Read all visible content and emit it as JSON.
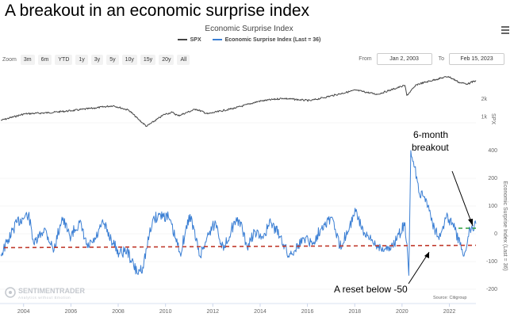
{
  "headline": "A breakout in an economic surprise index",
  "toolbar": {
    "zoom_label": "Zoom",
    "zoom_buttons": [
      "3m",
      "6m",
      "YTD",
      "1y",
      "3y",
      "5y",
      "10y",
      "15y",
      "20y",
      "All"
    ],
    "from_label": "From",
    "from_value": "Jan 2, 2003",
    "to_label": "To",
    "to_value": "Feb 15, 2023"
  },
  "watermark": {
    "name": "SENTIMENTRADER",
    "tagline": "Analytics without Emotion"
  },
  "chart_data": {
    "type": "line",
    "title": "Economic Surprise Index",
    "source": "Source: Citigroup",
    "colors": {
      "spx": "#444444",
      "esi": "#3b7fd4",
      "threshold": "#c0392b",
      "breakout": "#2e9e3e",
      "background": "#ffffff"
    },
    "x_ticks": [
      "2004",
      "2006",
      "2008",
      "2010",
      "2012",
      "2014",
      "2016",
      "2018",
      "2020",
      "2022"
    ],
    "xlim": [
      "2003-01-02",
      "2023-02-15"
    ],
    "spx_axis": {
      "label": "SPX",
      "scale": "log",
      "ticks": [
        "1k",
        "2k"
      ],
      "tick_values": [
        1000,
        2000
      ]
    },
    "esi_axis": {
      "label": "Economic Surprise Index (Last = 36)",
      "ticks": [
        "-200",
        "-100",
        "0",
        "100",
        "200",
        "400"
      ],
      "tick_values": [
        -200,
        -100,
        0,
        100,
        200,
        400
      ]
    },
    "series": [
      {
        "name": "SPX",
        "x": [
          "2003-01",
          "2004-01",
          "2005-01",
          "2006-01",
          "2007-01",
          "2007-10",
          "2008-06",
          "2008-11",
          "2009-03",
          "2009-12",
          "2010-04",
          "2010-07",
          "2011-04",
          "2011-10",
          "2012-12",
          "2013-12",
          "2014-12",
          "2015-08",
          "2016-02",
          "2016-12",
          "2018-01",
          "2018-12",
          "2019-12",
          "2020-02",
          "2020-03",
          "2020-08",
          "2021-06",
          "2021-12",
          "2022-06",
          "2022-10",
          "2023-02"
        ],
        "values": [
          880,
          1130,
          1180,
          1280,
          1420,
          1550,
          1300,
          900,
          700,
          1110,
          1200,
          1050,
          1360,
          1130,
          1420,
          1840,
          2060,
          1950,
          1880,
          2240,
          2820,
          2400,
          3230,
          3380,
          2300,
          3500,
          4290,
          4790,
          3750,
          3600,
          4090
        ]
      },
      {
        "name": "Economic Surprise Index (Last = 36)",
        "x": [
          "2003-01",
          "2003-05",
          "2003-09",
          "2004-03",
          "2004-06",
          "2004-11",
          "2005-04",
          "2005-08",
          "2005-12",
          "2006-05",
          "2006-09",
          "2007-01",
          "2007-05",
          "2007-09",
          "2008-01",
          "2008-05",
          "2008-10",
          "2009-01",
          "2009-06",
          "2009-10",
          "2010-02",
          "2010-08",
          "2011-01",
          "2011-06",
          "2011-11",
          "2012-02",
          "2012-06",
          "2012-10",
          "2013-02",
          "2013-06",
          "2013-10",
          "2014-01",
          "2014-06",
          "2014-11",
          "2015-03",
          "2015-08",
          "2015-12",
          "2016-03",
          "2016-08",
          "2017-01",
          "2017-05",
          "2017-10",
          "2018-01",
          "2018-06",
          "2018-12",
          "2019-05",
          "2019-10",
          "2020-02",
          "2020-04",
          "2020-05",
          "2020-07",
          "2020-09",
          "2021-01",
          "2021-05",
          "2021-08",
          "2021-11",
          "2022-02",
          "2022-06",
          "2022-08",
          "2022-11",
          "2023-02"
        ],
        "values": [
          -75,
          -20,
          40,
          70,
          -40,
          20,
          -60,
          60,
          -10,
          40,
          -50,
          -20,
          40,
          -20,
          -70,
          -60,
          -140,
          -120,
          50,
          70,
          60,
          -70,
          70,
          -80,
          10,
          40,
          -60,
          20,
          50,
          -50,
          10,
          -20,
          40,
          -10,
          -80,
          -40,
          -10,
          -40,
          30,
          60,
          -50,
          30,
          80,
          -10,
          -40,
          -60,
          -20,
          40,
          -150,
          300,
          240,
          150,
          120,
          20,
          -10,
          60,
          40,
          -40,
          -80,
          20,
          36
        ]
      }
    ],
    "annotations": [
      {
        "text": "A reset below -50",
        "value": -50,
        "color": "#c0392b",
        "style": "dashed"
      },
      {
        "text": "6-month breakout",
        "lines": [
          "6-month",
          "breakout"
        ],
        "value": 20,
        "color": "#2e9e3e",
        "style": "dashed"
      }
    ]
  }
}
